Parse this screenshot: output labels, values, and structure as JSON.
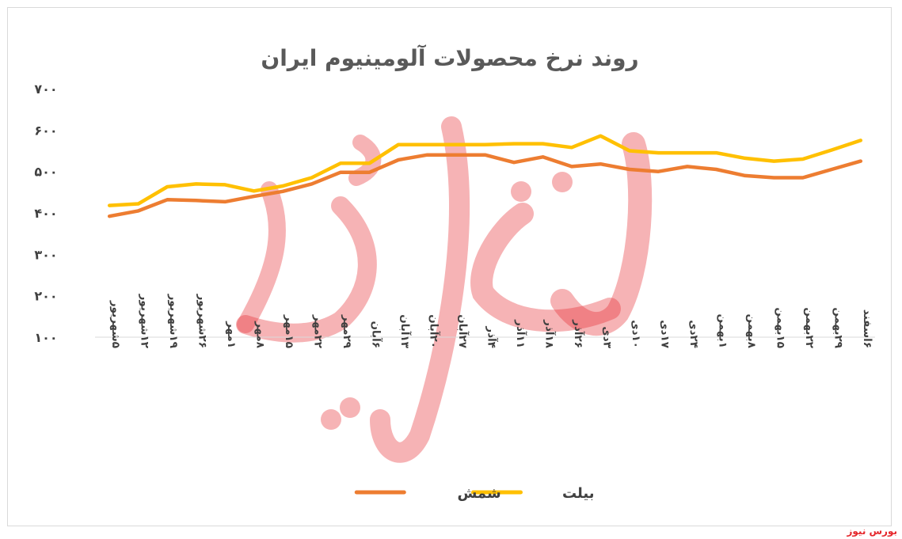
{
  "watermark": {
    "text": "بورس نیوز",
    "color": "#e5262b"
  },
  "chart_data": {
    "type": "line",
    "title": "روند نرخ محصولات آلومینیوم ایران",
    "xlabel": "",
    "ylabel": "",
    "ylim": [
      100,
      700
    ],
    "yticks": [
      "۱۰۰",
      "۲۰۰",
      "۳۰۰",
      "۴۰۰",
      "۵۰۰",
      "۶۰۰",
      "۷۰۰"
    ],
    "grid": false,
    "legend_position": "bottom",
    "categories": [
      "۵شهریور",
      "۱۲شهریور",
      "۱۹شهریور",
      "۲۶شهریور",
      "۱مهر",
      "۸مهر",
      "۱۵مهر",
      "۲۲مهر",
      "۲۹مهر",
      "۶آبان",
      "۱۳آبان",
      "۲۰آبان",
      "۲۷آبان",
      "۴آذر",
      "۱۱آذر",
      "۱۸آذر",
      "۲۶آذر",
      "۳دی",
      "۱۰دی",
      "۱۷دی",
      "۲۴دی",
      "۱بهمن",
      "۸بهمن",
      "۱۵بهمن",
      "۲۲بهمن",
      "۲۹بهمن",
      "۶اسفند"
    ],
    "series": [
      {
        "name": "شمش",
        "color": "#ed7d31",
        "values": [
          392,
          405,
          432,
          430,
          427,
          440,
          452,
          470,
          498,
          498,
          528,
          540,
          540,
          540,
          522,
          535,
          512,
          518,
          505,
          500,
          512,
          505,
          490,
          485,
          485,
          505,
          525
        ]
      },
      {
        "name": "بیلت",
        "color": "#ffc000",
        "values": [
          418,
          422,
          463,
          470,
          468,
          453,
          465,
          485,
          520,
          520,
          565,
          565,
          565,
          565,
          567,
          567,
          558,
          586,
          550,
          545,
          545,
          545,
          532,
          525,
          530,
          552,
          575
        ]
      }
    ]
  }
}
